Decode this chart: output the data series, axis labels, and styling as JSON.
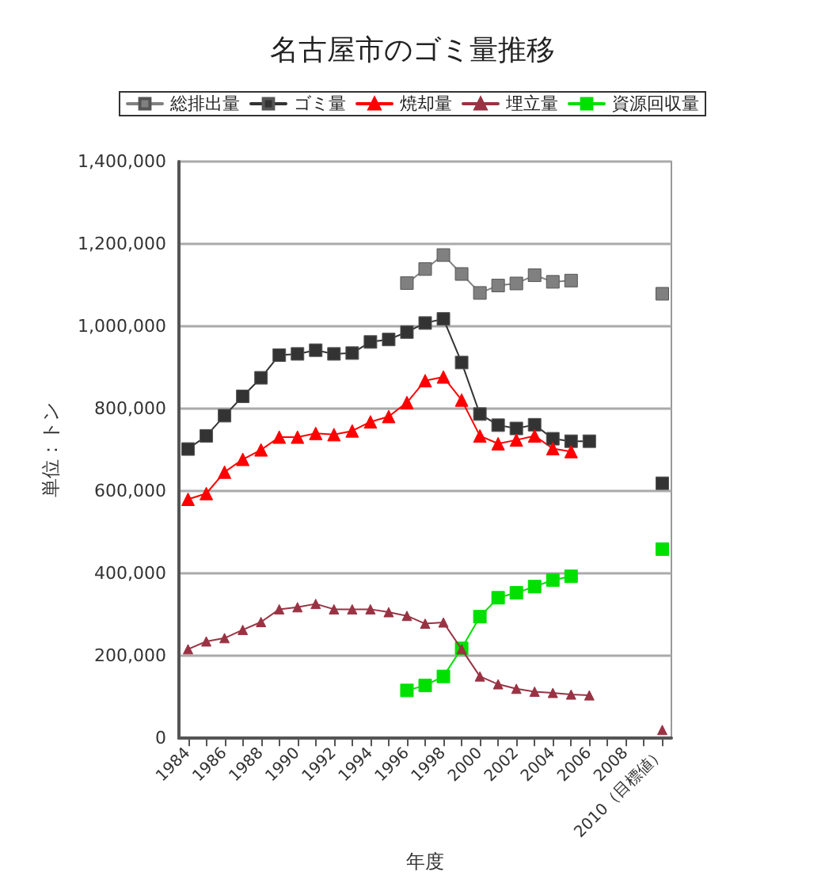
{
  "chart_data": {
    "type": "line",
    "title": "名古屋市のゴミ量推移",
    "xlabel": "年度",
    "ylabel": "単位：トン",
    "categories": [
      "1984",
      null,
      "1986",
      null,
      "1988",
      null,
      "1990",
      null,
      "1992",
      null,
      "1994",
      null,
      "1996",
      null,
      "1998",
      null,
      "2000",
      null,
      "2002",
      null,
      "2004",
      null,
      "2006",
      null,
      "2008",
      null,
      "2010（目標値）"
    ],
    "series": [
      {
        "name": "総排出量",
        "color": "#808080",
        "marker": "square",
        "values": [
          null,
          null,
          null,
          null,
          null,
          null,
          null,
          null,
          null,
          null,
          null,
          null,
          1105000,
          1139000,
          1173000,
          1127000,
          1081000,
          1099000,
          1104000,
          1124000,
          1108000,
          1111000,
          null,
          null,
          null,
          null,
          1079000
        ]
      },
      {
        "name": "ゴミ量",
        "color": "#333333",
        "marker": "square",
        "values": [
          702000,
          734000,
          783000,
          830000,
          875000,
          930000,
          933000,
          942000,
          933000,
          935000,
          962000,
          968000,
          986000,
          1008000,
          1018000,
          912000,
          787000,
          760000,
          752000,
          761000,
          727000,
          721000,
          721000,
          null,
          null,
          null,
          619000
        ]
      },
      {
        "name": "焼却量",
        "color": "#ff0000",
        "marker": "triangle",
        "values": [
          580000,
          594000,
          646000,
          677000,
          700000,
          731000,
          731000,
          740000,
          737000,
          746000,
          768000,
          781000,
          815000,
          868000,
          877000,
          821000,
          734000,
          715000,
          724000,
          734000,
          703000,
          696000,
          null,
          null,
          null,
          null,
          null
        ]
      },
      {
        "name": "埋立量",
        "color": "#993344",
        "marker": "triangle",
        "values": [
          216000,
          235000,
          243000,
          263000,
          282000,
          313000,
          318000,
          326000,
          313000,
          313000,
          313000,
          306000,
          297000,
          278000,
          281000,
          216000,
          150000,
          131000,
          120000,
          113000,
          110000,
          106000,
          104000,
          null,
          null,
          null,
          20000
        ]
      },
      {
        "name": "資源回収量",
        "color": "#00e000",
        "marker": "square",
        "values": [
          null,
          null,
          null,
          null,
          null,
          null,
          null,
          null,
          null,
          null,
          null,
          null,
          116000,
          128000,
          150000,
          218000,
          295000,
          341000,
          353000,
          368000,
          384000,
          393000,
          null,
          null,
          null,
          null,
          459000
        ]
      }
    ],
    "ylim": [
      0,
      1400000
    ],
    "yticks": [
      0,
      {
        "value": 200000,
        "label": "200,000"
      },
      {
        "value": 400000,
        "label": "400,000"
      },
      {
        "value": 600000,
        "label": "600,000"
      },
      {
        "value": 800000,
        "label": "800,000"
      },
      {
        "value": 1000000,
        "label": "1,000,000"
      },
      {
        "value": 1200000,
        "label": "1,200,000"
      },
      {
        "value": 1400000,
        "label": "1,400,000"
      }
    ],
    "grid": "y",
    "legend": "top",
    "line_style": "solid"
  }
}
